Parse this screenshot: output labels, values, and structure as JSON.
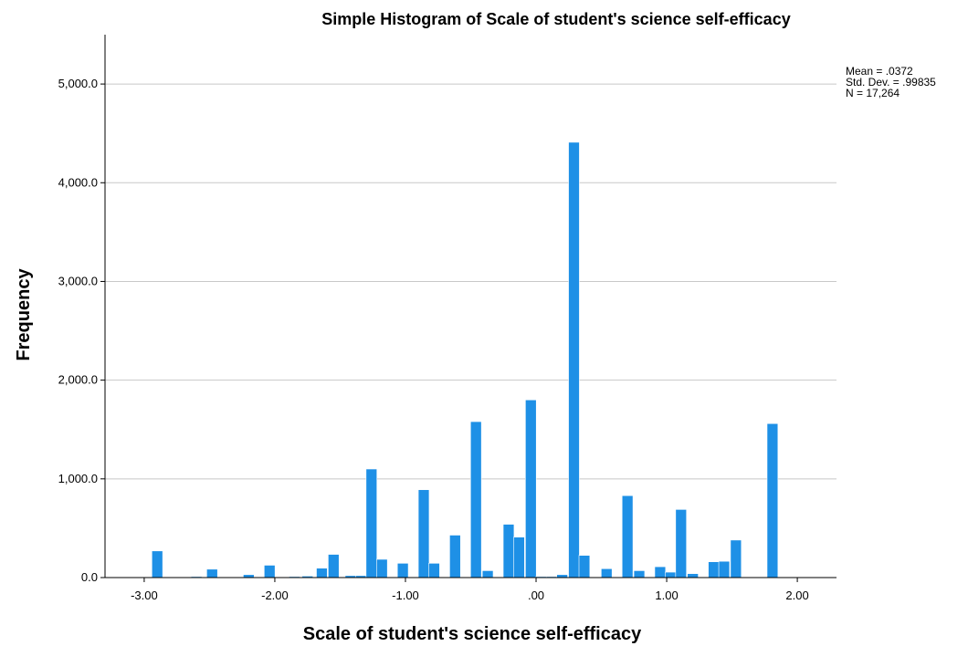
{
  "chart_data": {
    "type": "bar",
    "title": "Simple Histogram of Scale of student's science self-efficacy",
    "xlabel": "Scale of student's science self-efficacy",
    "ylabel": "Frequency",
    "xlim": [
      -3.3,
      2.3
    ],
    "ylim": [
      0,
      5500
    ],
    "x_ticks": [
      -3,
      -2,
      -1,
      0,
      1,
      2
    ],
    "x_tick_labels": [
      "-3.00",
      "-2.00",
      "-1.00",
      ".00",
      "1.00",
      "2.00"
    ],
    "y_ticks": [
      0,
      1000,
      2000,
      3000,
      4000,
      5000
    ],
    "y_tick_labels": [
      "0.0",
      "1,000.0",
      "2,000.0",
      "3,000.0",
      "4,000.0",
      "5,000.0"
    ],
    "grid": true,
    "bar_color": "#1e90e6",
    "bin_width": 0.083,
    "bins": [
      {
        "x": -2.9,
        "value": 270
      },
      {
        "x": -2.6,
        "value": 10
      },
      {
        "x": -2.48,
        "value": 85
      },
      {
        "x": -2.2,
        "value": 30
      },
      {
        "x": -2.04,
        "value": 125
      },
      {
        "x": -1.85,
        "value": 10
      },
      {
        "x": -1.75,
        "value": 15
      },
      {
        "x": -1.64,
        "value": 95
      },
      {
        "x": -1.55,
        "value": 235
      },
      {
        "x": -1.42,
        "value": 20
      },
      {
        "x": -1.34,
        "value": 20
      },
      {
        "x": -1.26,
        "value": 1100
      },
      {
        "x": -1.18,
        "value": 185
      },
      {
        "x": -1.02,
        "value": 145
      },
      {
        "x": -0.86,
        "value": 890
      },
      {
        "x": -0.78,
        "value": 145
      },
      {
        "x": -0.62,
        "value": 430
      },
      {
        "x": -0.46,
        "value": 1580
      },
      {
        "x": -0.37,
        "value": 70
      },
      {
        "x": -0.21,
        "value": 540
      },
      {
        "x": -0.13,
        "value": 410
      },
      {
        "x": -0.04,
        "value": 1800
      },
      {
        "x": 0.04,
        "value": 10
      },
      {
        "x": 0.12,
        "value": 10
      },
      {
        "x": 0.2,
        "value": 30
      },
      {
        "x": 0.29,
        "value": 4410
      },
      {
        "x": 0.37,
        "value": 225
      },
      {
        "x": 0.54,
        "value": 90
      },
      {
        "x": 0.7,
        "value": 830
      },
      {
        "x": 0.79,
        "value": 70
      },
      {
        "x": 0.95,
        "value": 110
      },
      {
        "x": 1.03,
        "value": 55
      },
      {
        "x": 1.11,
        "value": 690
      },
      {
        "x": 1.2,
        "value": 40
      },
      {
        "x": 1.36,
        "value": 160
      },
      {
        "x": 1.44,
        "value": 165
      },
      {
        "x": 1.53,
        "value": 380
      },
      {
        "x": 1.81,
        "value": 1560
      }
    ],
    "legend": {
      "placement": "top-right",
      "lines": [
        "Mean = .0372",
        "Std. Dev. = .99835",
        "N = 17,264"
      ]
    }
  }
}
